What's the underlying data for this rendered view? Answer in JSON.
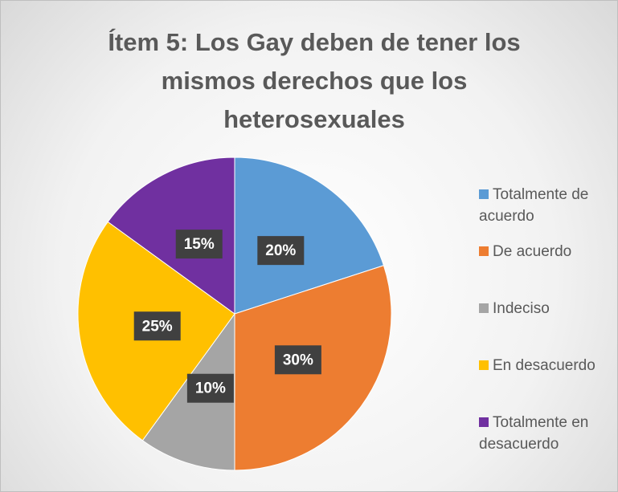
{
  "chart_data": {
    "type": "pie",
    "title": "Ítem 5: Los Gay deben de tener los mismos derechos que los heterosexuales",
    "categories": [
      "Totalmente de acuerdo",
      "De acuerdo",
      "Indeciso",
      "En desacuerdo",
      "Totalmente en desacuerdo"
    ],
    "values": [
      20,
      30,
      10,
      25,
      15
    ],
    "value_labels": [
      "20%",
      "30%",
      "10%",
      "25%",
      "15%"
    ],
    "colors": [
      "#5b9bd5",
      "#ed7d31",
      "#a5a5a5",
      "#ffc000",
      "#7030a0"
    ],
    "legend": "right"
  }
}
